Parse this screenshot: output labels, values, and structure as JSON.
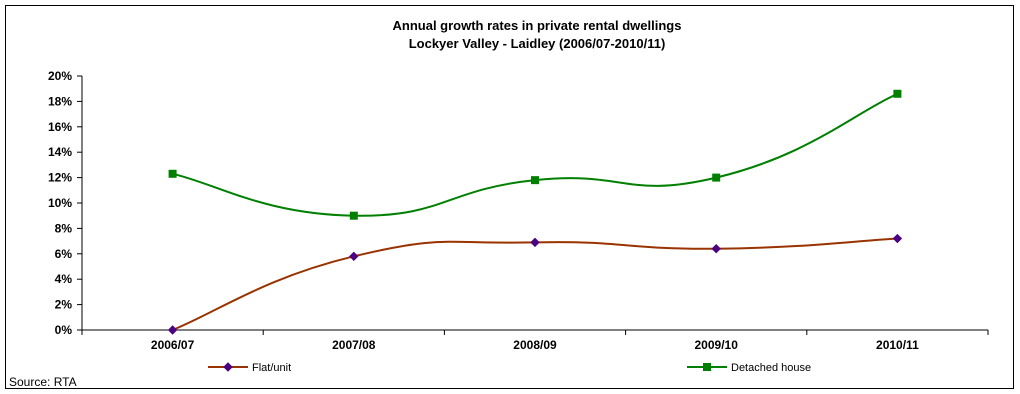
{
  "chart_data": {
    "type": "line",
    "title": "Annual growth rates in private rental dwellings",
    "subtitle": "Lockyer Valley - Laidley (2006/07-2010/11)",
    "categories": [
      "2006/07",
      "2007/08",
      "2008/09",
      "2009/10",
      "2010/11"
    ],
    "series": [
      {
        "name": "Flat/unit",
        "values": [
          0.0,
          5.8,
          6.9,
          6.4,
          7.2
        ],
        "color": "#993300",
        "marker": "diamond",
        "marker_color": "#4B0082"
      },
      {
        "name": "Detached house",
        "values": [
          12.3,
          9.0,
          11.8,
          12.0,
          18.6
        ],
        "color": "#008000",
        "marker": "square",
        "marker_color": "#008000"
      }
    ],
    "ylim": [
      0,
      20
    ],
    "yticks": [
      0,
      2,
      4,
      6,
      8,
      10,
      12,
      14,
      16,
      18,
      20
    ],
    "y_tick_format": "percent",
    "grid": false,
    "legend_position": "bottom",
    "smoothed": true
  },
  "source_note": "Source: RTA"
}
